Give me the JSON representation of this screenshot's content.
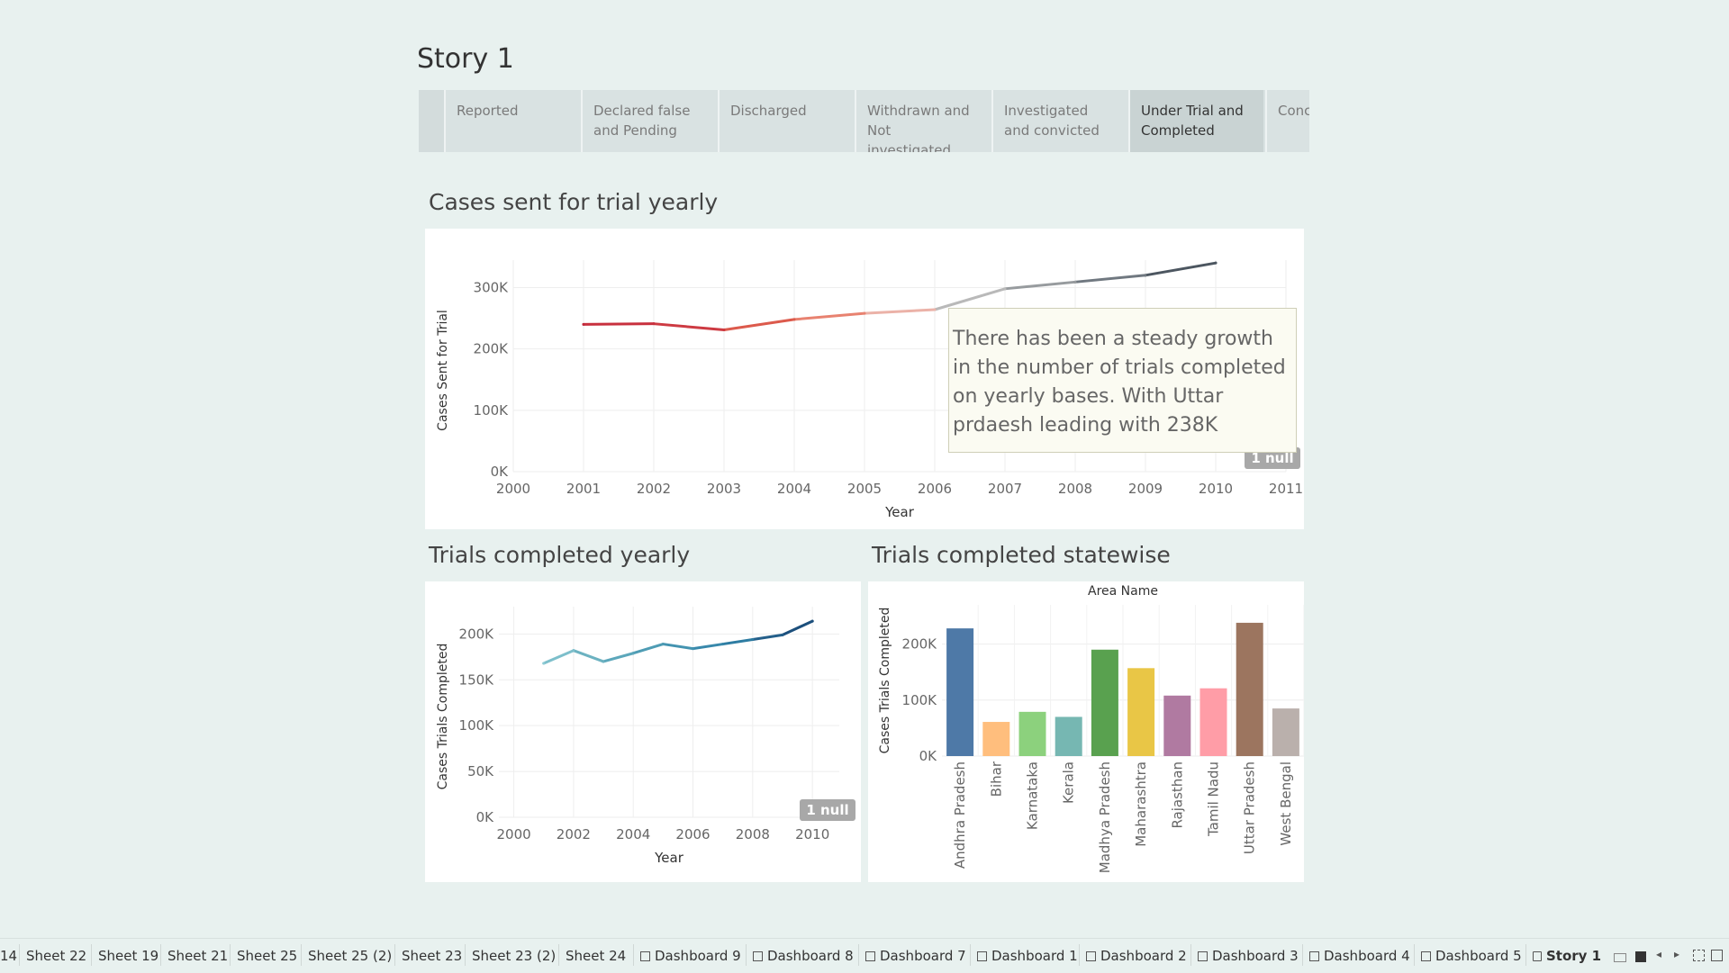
{
  "story": {
    "title": "Story 1"
  },
  "nav_points": [
    {
      "label": "Reported",
      "active": false
    },
    {
      "label": "Declared false and Pending",
      "active": false
    },
    {
      "label": "Discharged",
      "active": false
    },
    {
      "label": "Withdrawn and Not investigated",
      "active": false
    },
    {
      "label": "Investigated and convicted",
      "active": false
    },
    {
      "label": "Under Trial and Completed",
      "active": true
    },
    {
      "label": "Concl",
      "active": false
    }
  ],
  "caption": "There has been a steady growth in the number of trials completed on yearly bases.  With Uttar prdaesh leading with 238K",
  "chart_data": [
    {
      "type": "line",
      "title": "Cases sent for trial yearly",
      "xlabel": "Year",
      "ylabel": "Cases Sent for Trial",
      "x_ticks": [
        "2000",
        "2001",
        "2002",
        "2003",
        "2004",
        "2005",
        "2006",
        "2007",
        "2008",
        "2009",
        "2010",
        "2011"
      ],
      "y_ticks": [
        "0K",
        "100K",
        "200K",
        "300K"
      ],
      "ylim": [
        0,
        330000
      ],
      "xlim": [
        2000,
        2011
      ],
      "x": [
        2001,
        2002,
        2003,
        2004,
        2005,
        2006,
        2007,
        2008,
        2009,
        2010
      ],
      "values": [
        240000,
        241000,
        231000,
        248000,
        258000,
        264000,
        298000,
        309000,
        320000,
        340000
      ],
      "colors": [
        "#c0283a",
        "#c8303e",
        "#cd3a42",
        "#dc5a4c",
        "#e88270",
        "#ebb2a8",
        "#b9b9b9",
        "#979b9e",
        "#707880",
        "#4c5660"
      ],
      "null_badge": "1 null",
      "grid": true
    },
    {
      "type": "line",
      "title": "Trials completed yearly",
      "xlabel": "Year",
      "ylabel": "Cases Trials Completed",
      "x_ticks": [
        "2000",
        "2002",
        "2004",
        "2006",
        "2008",
        "2010"
      ],
      "y_ticks": [
        "0K",
        "50K",
        "100K",
        "150K",
        "200K"
      ],
      "ylim": [
        0,
        220000
      ],
      "xlim": [
        1999.5,
        2010.9
      ],
      "x": [
        2001,
        2002,
        2003,
        2004,
        2005,
        2006,
        2007,
        2008,
        2009,
        2010
      ],
      "values": [
        168000,
        182000,
        170000,
        179000,
        189000,
        184000,
        189000,
        194000,
        199000,
        214000
      ],
      "colors": [
        "#8fccd5",
        "#7dbfcb",
        "#6cb2c1",
        "#5ca7bb",
        "#4e9cb4",
        "#4393b0",
        "#3888ab",
        "#2d7ca2",
        "#245f8a",
        "#1c4f7c"
      ],
      "null_badge": "1 null",
      "grid": true
    },
    {
      "type": "bar",
      "title": "Trials completed statewise",
      "header": "Area Name",
      "ylabel": "Cases Trials Completed",
      "y_ticks": [
        "0K",
        "100K",
        "200K"
      ],
      "ylim": [
        0,
        270000
      ],
      "categories": [
        "Andhra Pradesh",
        "Bihar",
        "Karnataka",
        "Kerala",
        "Madhya Pradesh",
        "Maharashtra",
        "Rajasthan",
        "Tamil Nadu",
        "Uttar Pradesh",
        "West Bengal"
      ],
      "values": [
        228000,
        61000,
        79000,
        70000,
        190000,
        157000,
        108000,
        121000,
        238000,
        85000
      ],
      "colors": [
        "#4e79a7",
        "#ffbe7d",
        "#8cd17d",
        "#76b7b2",
        "#59a14f",
        "#e9c646",
        "#b07aa1",
        "#ff9da7",
        "#9c755f",
        "#bab0ac"
      ],
      "grid": true
    }
  ],
  "tabs": [
    "14",
    "Sheet 22",
    "Sheet 19",
    "Sheet 21",
    "Sheet 25",
    "Sheet 25 (2)",
    "Sheet 23",
    "Sheet 23 (2)",
    "Sheet 24",
    "Dashboard 9",
    "Dashboard 8",
    "Dashboard 7",
    "Dashboard 1",
    "Dashboard 2",
    "Dashboard 3",
    "Dashboard 4",
    "Dashboard 5",
    "Story 1"
  ],
  "tab_icons": [
    "",
    "",
    "",
    "",
    "",
    "",
    "",
    "",
    "",
    "grid-icon",
    "grid-icon",
    "grid-icon",
    "grid-icon",
    "grid-icon",
    "grid-icon",
    "grid-icon",
    "grid-icon",
    "story-icon"
  ],
  "active_tab": "Story 1"
}
